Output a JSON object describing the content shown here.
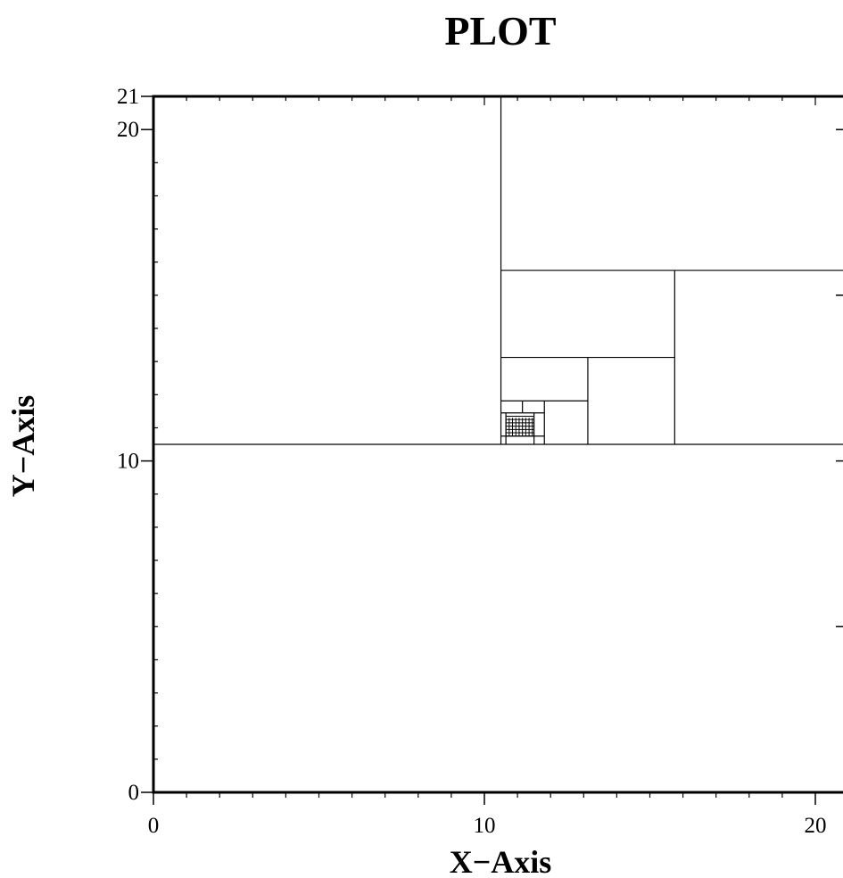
{
  "chart_data": {
    "type": "line",
    "title": "PLOT",
    "xlabel": "X−Axis",
    "ylabel": "Y−Axis",
    "xlim": [
      0,
      20.8
    ],
    "ylim": [
      0,
      21
    ],
    "grid": false,
    "x_ticks": [
      {
        "value": 0,
        "label": "0"
      },
      {
        "value": 10,
        "label": "10"
      },
      {
        "value": 20,
        "label": "20"
      }
    ],
    "y_ticks": [
      {
        "value": 0,
        "label": "0"
      },
      {
        "value": 10,
        "label": "10"
      },
      {
        "value": 20,
        "label": "20"
      },
      {
        "value": 21,
        "label": "21"
      }
    ],
    "description": "Adaptive quadtree subdivision: nested rectangles refining toward the point (11, 11)",
    "lines": [
      {
        "x": [
          0,
          21
        ],
        "y": [
          10.5,
          10.5
        ]
      },
      {
        "x": [
          10.5,
          10.5
        ],
        "y": [
          10.5,
          21
        ]
      },
      {
        "x": [
          10.5,
          21
        ],
        "y": [
          15.75,
          15.75
        ]
      },
      {
        "x": [
          15.75,
          15.75
        ],
        "y": [
          10.5,
          15.75
        ]
      },
      {
        "x": [
          10.5,
          15.75
        ],
        "y": [
          13.125,
          13.125
        ]
      },
      {
        "x": [
          13.125,
          13.125
        ],
        "y": [
          10.5,
          13.125
        ]
      },
      {
        "x": [
          10.5,
          13.125
        ],
        "y": [
          11.8125,
          11.8125
        ]
      },
      {
        "x": [
          11.8125,
          11.8125
        ],
        "y": [
          10.5,
          11.8125
        ]
      },
      {
        "x": [
          10.5,
          11.8125
        ],
        "y": [
          11.45,
          11.45
        ]
      },
      {
        "x": [
          11.15,
          11.15
        ],
        "y": [
          11.45,
          11.8125
        ]
      },
      {
        "x": [
          10.5,
          11.8125
        ],
        "y": [
          10.75,
          10.75
        ]
      },
      {
        "x": [
          11.5,
          11.5
        ],
        "y": [
          10.5,
          11.45
        ]
      },
      {
        "x": [
          10.65,
          10.65
        ],
        "y": [
          10.5,
          11.45
        ]
      }
    ],
    "fine_grid": {
      "x_range": [
        10.65,
        11.5
      ],
      "y_range": [
        10.75,
        11.3
      ],
      "step": 0.1
    }
  }
}
